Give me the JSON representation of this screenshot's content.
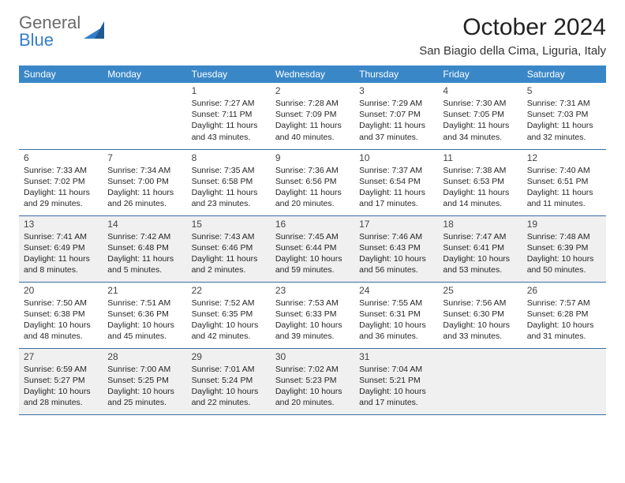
{
  "brand": {
    "part1": "General",
    "part2": "Blue"
  },
  "title": "October 2024",
  "location": "San Biagio della Cima, Liguria, Italy",
  "calendar": {
    "header_bg": "#3a87c8",
    "header_fg": "#ffffff",
    "row_divider_color": "#3a6ea5",
    "shaded_bg": "#f0f0f0",
    "font_family": "Arial",
    "title_fontsize": 30,
    "location_fontsize": 15,
    "header_fontsize": 12,
    "daynum_fontsize": 12,
    "body_fontsize": 10.5,
    "columns": [
      "Sunday",
      "Monday",
      "Tuesday",
      "Wednesday",
      "Thursday",
      "Friday",
      "Saturday"
    ],
    "weeks": [
      {
        "shaded": false,
        "days": [
          null,
          null,
          {
            "n": "1",
            "sr": "7:27 AM",
            "ss": "7:11 PM",
            "dl": "11 hours and 43 minutes."
          },
          {
            "n": "2",
            "sr": "7:28 AM",
            "ss": "7:09 PM",
            "dl": "11 hours and 40 minutes."
          },
          {
            "n": "3",
            "sr": "7:29 AM",
            "ss": "7:07 PM",
            "dl": "11 hours and 37 minutes."
          },
          {
            "n": "4",
            "sr": "7:30 AM",
            "ss": "7:05 PM",
            "dl": "11 hours and 34 minutes."
          },
          {
            "n": "5",
            "sr": "7:31 AM",
            "ss": "7:03 PM",
            "dl": "11 hours and 32 minutes."
          }
        ]
      },
      {
        "shaded": false,
        "days": [
          {
            "n": "6",
            "sr": "7:33 AM",
            "ss": "7:02 PM",
            "dl": "11 hours and 29 minutes."
          },
          {
            "n": "7",
            "sr": "7:34 AM",
            "ss": "7:00 PM",
            "dl": "11 hours and 26 minutes."
          },
          {
            "n": "8",
            "sr": "7:35 AM",
            "ss": "6:58 PM",
            "dl": "11 hours and 23 minutes."
          },
          {
            "n": "9",
            "sr": "7:36 AM",
            "ss": "6:56 PM",
            "dl": "11 hours and 20 minutes."
          },
          {
            "n": "10",
            "sr": "7:37 AM",
            "ss": "6:54 PM",
            "dl": "11 hours and 17 minutes."
          },
          {
            "n": "11",
            "sr": "7:38 AM",
            "ss": "6:53 PM",
            "dl": "11 hours and 14 minutes."
          },
          {
            "n": "12",
            "sr": "7:40 AM",
            "ss": "6:51 PM",
            "dl": "11 hours and 11 minutes."
          }
        ]
      },
      {
        "shaded": true,
        "days": [
          {
            "n": "13",
            "sr": "7:41 AM",
            "ss": "6:49 PM",
            "dl": "11 hours and 8 minutes."
          },
          {
            "n": "14",
            "sr": "7:42 AM",
            "ss": "6:48 PM",
            "dl": "11 hours and 5 minutes."
          },
          {
            "n": "15",
            "sr": "7:43 AM",
            "ss": "6:46 PM",
            "dl": "11 hours and 2 minutes."
          },
          {
            "n": "16",
            "sr": "7:45 AM",
            "ss": "6:44 PM",
            "dl": "10 hours and 59 minutes."
          },
          {
            "n": "17",
            "sr": "7:46 AM",
            "ss": "6:43 PM",
            "dl": "10 hours and 56 minutes."
          },
          {
            "n": "18",
            "sr": "7:47 AM",
            "ss": "6:41 PM",
            "dl": "10 hours and 53 minutes."
          },
          {
            "n": "19",
            "sr": "7:48 AM",
            "ss": "6:39 PM",
            "dl": "10 hours and 50 minutes."
          }
        ]
      },
      {
        "shaded": false,
        "days": [
          {
            "n": "20",
            "sr": "7:50 AM",
            "ss": "6:38 PM",
            "dl": "10 hours and 48 minutes."
          },
          {
            "n": "21",
            "sr": "7:51 AM",
            "ss": "6:36 PM",
            "dl": "10 hours and 45 minutes."
          },
          {
            "n": "22",
            "sr": "7:52 AM",
            "ss": "6:35 PM",
            "dl": "10 hours and 42 minutes."
          },
          {
            "n": "23",
            "sr": "7:53 AM",
            "ss": "6:33 PM",
            "dl": "10 hours and 39 minutes."
          },
          {
            "n": "24",
            "sr": "7:55 AM",
            "ss": "6:31 PM",
            "dl": "10 hours and 36 minutes."
          },
          {
            "n": "25",
            "sr": "7:56 AM",
            "ss": "6:30 PM",
            "dl": "10 hours and 33 minutes."
          },
          {
            "n": "26",
            "sr": "7:57 AM",
            "ss": "6:28 PM",
            "dl": "10 hours and 31 minutes."
          }
        ]
      },
      {
        "shaded": true,
        "days": [
          {
            "n": "27",
            "sr": "6:59 AM",
            "ss": "5:27 PM",
            "dl": "10 hours and 28 minutes."
          },
          {
            "n": "28",
            "sr": "7:00 AM",
            "ss": "5:25 PM",
            "dl": "10 hours and 25 minutes."
          },
          {
            "n": "29",
            "sr": "7:01 AM",
            "ss": "5:24 PM",
            "dl": "10 hours and 22 minutes."
          },
          {
            "n": "30",
            "sr": "7:02 AM",
            "ss": "5:23 PM",
            "dl": "10 hours and 20 minutes."
          },
          {
            "n": "31",
            "sr": "7:04 AM",
            "ss": "5:21 PM",
            "dl": "10 hours and 17 minutes."
          },
          null,
          null
        ]
      }
    ],
    "labels": {
      "sunrise": "Sunrise: ",
      "sunset": "Sunset: ",
      "daylight": "Daylight: "
    }
  }
}
